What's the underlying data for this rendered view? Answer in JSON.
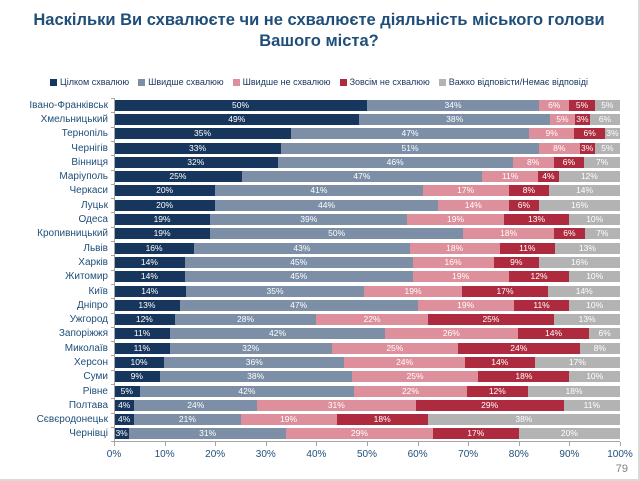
{
  "title": "Наскільки Ви схвалюєте чи не схвалюєте діяльність міського голови Вашого міста?",
  "page_number": "79",
  "chart_data": {
    "type": "bar",
    "stacked": true,
    "orientation": "horizontal",
    "value_suffix": "%",
    "xlim": [
      0,
      100
    ],
    "x_ticks": [
      "0%",
      "10%",
      "20%",
      "30%",
      "40%",
      "50%",
      "60%",
      "70%",
      "80%",
      "90%",
      "100%"
    ],
    "legend_position": "top",
    "grid": false,
    "categories": [
      "Івано-Франківськ",
      "Хмельницький",
      "Тернопіль",
      "Чернігів",
      "Вінниця",
      "Маріуполь",
      "Черкаси",
      "Луцьк",
      "Одеса",
      "Кропивницький",
      "Львів",
      "Харків",
      "Житомир",
      "Київ",
      "Дніпро",
      "Ужгород",
      "Запоріжжя",
      "Миколаїв",
      "Херсон",
      "Суми",
      "Рівне",
      "Полтава",
      "Сєвєродонецьк",
      "Чернівці"
    ],
    "series": [
      {
        "name": "Цілком схвалюю",
        "color": "#17365d",
        "values": [
          50,
          49,
          35,
          33,
          32,
          25,
          20,
          20,
          19,
          19,
          16,
          14,
          14,
          14,
          13,
          12,
          11,
          11,
          10,
          9,
          5,
          4,
          4,
          3
        ]
      },
      {
        "name": "Швидше схвалюю",
        "color": "#7c8fa6",
        "values": [
          34,
          38,
          47,
          51,
          46,
          47,
          41,
          44,
          39,
          50,
          43,
          45,
          45,
          35,
          47,
          28,
          42,
          32,
          36,
          38,
          42,
          24,
          21,
          31
        ]
      },
      {
        "name": "Швидше не схвалюю",
        "color": "#de8f9c",
        "values": [
          6,
          5,
          9,
          8,
          8,
          11,
          17,
          14,
          19,
          18,
          18,
          16,
          19,
          19,
          19,
          22,
          26,
          25,
          24,
          25,
          22,
          31,
          19,
          29
        ]
      },
      {
        "name": "Зовсім не схвалюю",
        "color": "#ae2b3f",
        "values": [
          5,
          3,
          6,
          3,
          6,
          4,
          8,
          6,
          13,
          6,
          11,
          9,
          12,
          17,
          11,
          25,
          14,
          24,
          14,
          18,
          12,
          29,
          18,
          17
        ]
      },
      {
        "name": "Важко відповісти/Немає відповіді",
        "color": "#b3b3b3",
        "values": [
          5,
          6,
          3,
          5,
          7,
          12,
          14,
          16,
          10,
          7,
          13,
          16,
          10,
          14,
          10,
          13,
          6,
          8,
          17,
          10,
          18,
          11,
          38,
          20
        ]
      }
    ]
  }
}
